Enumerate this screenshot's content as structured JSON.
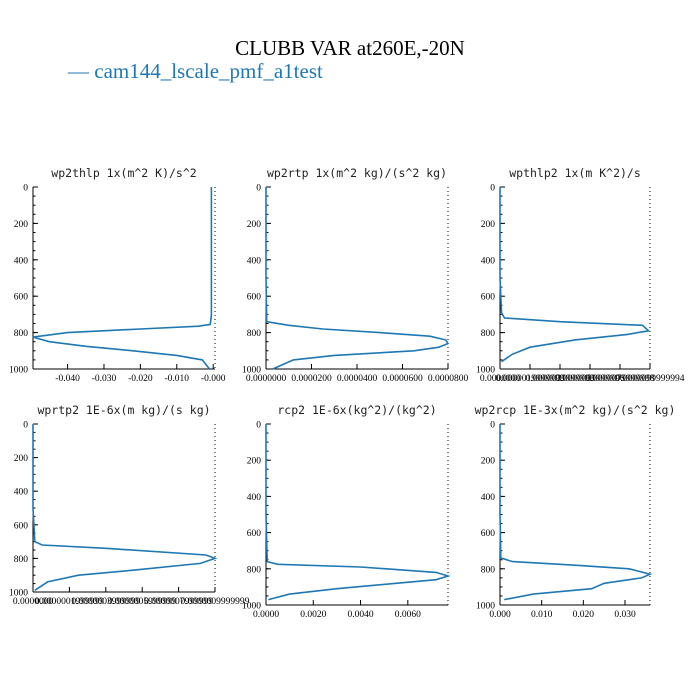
{
  "title": "CLUBB VAR at260E,-20N",
  "legend": {
    "label": "cam144_lscale_pmf_a1test",
    "marker": "—",
    "color": "#1f77b4"
  },
  "series_color": "#1f77b4",
  "chart_data": [
    {
      "type": "line",
      "title": "wp2thlp   1x(m^2 K)/s^2",
      "xlim": [
        -0.0495,
        0.0005
      ],
      "ylim": [
        1000,
        0
      ],
      "xticks": [
        -0.04,
        -0.03,
        -0.02,
        -0.01,
        0.0
      ],
      "xtick_labels": [
        "-0.040",
        "-0.030",
        "-0.020",
        "-0.010",
        "-0.000"
      ],
      "yticks": [
        0,
        200,
        400,
        600,
        800,
        1000
      ],
      "ytick_labels": [
        "0",
        "200",
        "400",
        "600",
        "800",
        "1000"
      ],
      "series": [
        {
          "x": [
            -0.0005,
            -0.0005,
            -0.0005,
            -0.0005,
            -0.0008,
            -0.004,
            -0.02,
            -0.04,
            -0.0495,
            -0.045,
            -0.035,
            -0.022,
            -0.01,
            -0.003,
            -0.001
          ],
          "y": [
            0,
            200,
            500,
            700,
            755,
            765,
            780,
            800,
            825,
            850,
            875,
            900,
            925,
            950,
            1000
          ]
        }
      ]
    },
    {
      "type": "line",
      "title": "wp2rtp   1x(m^2 kg)/(s^2 kg)",
      "xlim": [
        0.0,
        8e-05
      ],
      "ylim": [
        1000,
        0
      ],
      "xticks": [
        0.0,
        2e-05,
        4e-05,
        6e-05,
        8e-05
      ],
      "xtick_labels": [
        "0.0000000",
        "0.0000200",
        "0.0000400",
        "0.0000600",
        "0.0000800"
      ],
      "yticks": [
        0,
        200,
        400,
        600,
        800,
        1000
      ],
      "ytick_labels": [
        "0",
        "200",
        "400",
        "600",
        "800",
        "1000"
      ],
      "series": [
        {
          "x": [
            0.0,
            0.0,
            0.0,
            3e-07,
            1e-05,
            2.5e-05,
            5e-05,
            7.2e-05,
            7.9e-05,
            8e-05,
            7.6e-05,
            6.5e-05,
            3e-05,
            1.2e-05,
            3e-06
          ],
          "y": [
            0,
            200,
            500,
            740,
            760,
            780,
            800,
            820,
            840,
            860,
            880,
            900,
            925,
            950,
            1000
          ]
        }
      ]
    },
    {
      "type": "line",
      "title": "wpthlp2   1x(m K^2)/s",
      "xlim": [
        0.0,
        9.9999994e-06
      ],
      "ylim": [
        1000,
        0
      ],
      "xticks": [
        0.0,
        1.9999999e-06,
        3.9999999e-06,
        5.9999996e-06,
        7.9999998e-06,
        9.9999994e-06
      ],
      "xtick_labels": [
        "0.0000000",
        "0.0000019999999",
        "0.0000039999999",
        "0.0000059999996",
        "0.0000079999998",
        "0.0000099999994"
      ],
      "yticks": [
        0,
        200,
        400,
        600,
        800,
        1000
      ],
      "ytick_labels": [
        "0",
        "200",
        "400",
        "600",
        "800",
        "1000"
      ],
      "series": [
        {
          "x": [
            0.0,
            0.0,
            0.0,
            1e-07,
            3e-07,
            4e-06,
            9.5e-06,
            9.9e-06,
            8.5e-06,
            5e-06,
            2e-06,
            8e-07,
            1e-07
          ],
          "y": [
            0,
            200,
            500,
            690,
            720,
            740,
            760,
            790,
            810,
            840,
            880,
            920,
            960
          ]
        }
      ]
    },
    {
      "type": "line",
      "title": "wprtp2   1E-6x(m kg)/(s kg)",
      "xlim": [
        0.0,
        1e-06
      ],
      "ylim": [
        1000,
        0
      ],
      "xticks": [
        0.0,
        1.999999e-07,
        3.999999e-07,
        5.999999e-07,
        7.999999e-07,
        9.999999e-07
      ],
      "xtick_labels": [
        "0.0000000",
        "0.0000001999999",
        "0.0000003999999",
        "0.0000005999999",
        "0.0000007999999",
        "0.0000009999999"
      ],
      "yticks": [
        0,
        200,
        400,
        600,
        800,
        1000
      ],
      "ytick_labels": [
        "0",
        "200",
        "400",
        "600",
        "800",
        "1000"
      ],
      "series": [
        {
          "x": [
            0.0,
            0.0,
            0.0,
            1e-08,
            5e-08,
            4e-07,
            9.5e-07,
            1e-06,
            9.2e-07,
            5.5e-07,
            2.5e-07,
            8e-08,
            1e-08
          ],
          "y": [
            0,
            200,
            500,
            700,
            720,
            740,
            780,
            800,
            830,
            870,
            900,
            940,
            990
          ]
        }
      ]
    },
    {
      "type": "line",
      "title": "rcp2   1E-6x(kg^2)/(kg^2)",
      "xlim": [
        0.0,
        0.0077
      ],
      "ylim": [
        1000,
        0
      ],
      "xticks": [
        0.0,
        0.002,
        0.004,
        0.006
      ],
      "xtick_labels": [
        "0.0000",
        "0.0020",
        "0.0040",
        "0.0060"
      ],
      "yticks": [
        0,
        200,
        400,
        600,
        800,
        1000
      ],
      "ytick_labels": [
        "0",
        "200",
        "400",
        "600",
        "800",
        "1000"
      ],
      "series": [
        {
          "x": [
            0.0,
            0.0,
            0.0,
            5e-05,
            0.0005,
            0.004,
            0.0072,
            0.0077,
            0.0072,
            0.0055,
            0.003,
            0.001,
            0.0001
          ],
          "y": [
            0,
            200,
            500,
            760,
            775,
            790,
            820,
            840,
            860,
            880,
            910,
            940,
            970
          ]
        }
      ]
    },
    {
      "type": "line",
      "title": "wp2rcp   1E-3x(m^2 kg)/(s^2 kg)",
      "xlim": [
        0.0,
        0.036
      ],
      "ylim": [
        1000,
        0
      ],
      "xticks": [
        0.0,
        0.01,
        0.02,
        0.03
      ],
      "xtick_labels": [
        "0.000",
        "0.010",
        "0.020",
        "0.030"
      ],
      "yticks": [
        0,
        200,
        400,
        600,
        800,
        1000
      ],
      "ytick_labels": [
        "0",
        "200",
        "400",
        "600",
        "800",
        "1000"
      ],
      "series": [
        {
          "x": [
            0.0,
            0.0,
            0.0,
            0.0002,
            0.003,
            0.018,
            0.031,
            0.036,
            0.034,
            0.025,
            0.022,
            0.008,
            0.001
          ],
          "y": [
            0,
            200,
            500,
            740,
            760,
            780,
            800,
            830,
            850,
            880,
            910,
            940,
            970
          ]
        }
      ]
    }
  ]
}
